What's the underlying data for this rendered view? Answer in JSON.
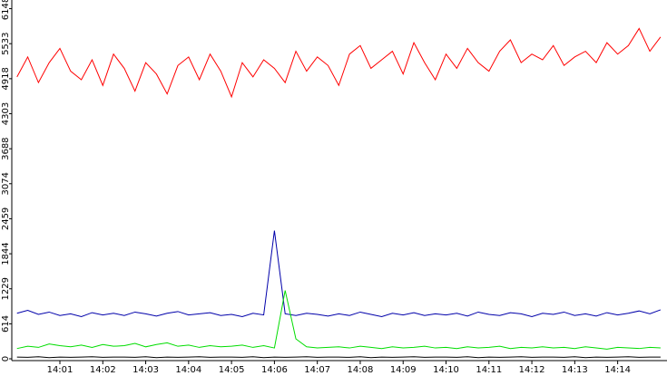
{
  "chart_data": {
    "type": "line",
    "x": [
      0,
      0.25,
      0.5,
      0.75,
      1,
      1.25,
      1.5,
      1.75,
      2,
      2.25,
      2.5,
      2.75,
      3,
      3.25,
      3.5,
      3.75,
      4,
      4.25,
      4.5,
      4.75,
      5,
      5.25,
      5.5,
      5.75,
      6,
      6.25,
      6.5,
      6.75,
      7,
      7.25,
      7.5,
      7.75,
      8,
      8.25,
      8.5,
      8.75,
      9,
      9.25,
      9.5,
      9.75,
      10,
      10.25,
      10.5,
      10.75,
      11,
      11.25,
      11.5,
      11.75,
      12,
      12.25,
      12.5,
      12.75,
      13,
      13.25,
      13.5,
      13.75,
      14,
      14.25,
      14.5,
      14.75,
      15
    ],
    "series": [
      {
        "color": "#ff0000",
        "values": [
          4950,
          5300,
          4850,
          5200,
          5450,
          5050,
          4900,
          5250,
          4800,
          5350,
          5100,
          4700,
          5200,
          5000,
          4650,
          5150,
          5300,
          4900,
          5350,
          5050,
          4600,
          5200,
          4950,
          5250,
          5100,
          4850,
          5400,
          5050,
          5300,
          5150,
          4800,
          5350,
          5500,
          5100,
          5250,
          5400,
          5000,
          5550,
          5200,
          4900,
          5350,
          5100,
          5450,
          5200,
          5050,
          5400,
          5600,
          5200,
          5350,
          5250,
          5500,
          5150,
          5300,
          5400,
          5200,
          5550,
          5350,
          5500,
          5800,
          5400,
          5650
        ]
      },
      {
        "color": "#0000aa",
        "values": [
          800,
          850,
          780,
          820,
          760,
          790,
          740,
          810,
          770,
          800,
          760,
          820,
          790,
          750,
          800,
          830,
          770,
          790,
          810,
          760,
          780,
          740,
          800,
          770,
          2250,
          790,
          760,
          800,
          780,
          750,
          790,
          760,
          820,
          780,
          740,
          800,
          770,
          810,
          760,
          790,
          770,
          800,
          750,
          820,
          780,
          760,
          810,
          790,
          740,
          800,
          780,
          820,
          760,
          790,
          750,
          810,
          770,
          800,
          840,
          790,
          860
        ]
      },
      {
        "color": "#00dd00",
        "values": [
          180,
          220,
          200,
          260,
          230,
          210,
          240,
          200,
          250,
          220,
          230,
          270,
          210,
          250,
          280,
          220,
          240,
          200,
          230,
          210,
          220,
          240,
          200,
          230,
          190,
          1200,
          350,
          210,
          190,
          200,
          210,
          190,
          220,
          200,
          180,
          210,
          190,
          200,
          220,
          190,
          200,
          180,
          210,
          190,
          200,
          220,
          180,
          200,
          190,
          210,
          190,
          200,
          180,
          210,
          190,
          170,
          200,
          190,
          180,
          200,
          190
        ]
      },
      {
        "color": "#000000",
        "values": [
          30,
          25,
          35,
          20,
          30,
          25,
          30,
          35,
          25,
          30,
          30,
          25,
          35,
          20,
          30,
          25,
          30,
          35,
          25,
          30,
          30,
          25,
          35,
          20,
          30,
          25,
          30,
          35,
          25,
          30,
          30,
          25,
          35,
          20,
          30,
          25,
          30,
          35,
          25,
          30,
          30,
          25,
          35,
          20,
          30,
          25,
          30,
          35,
          25,
          30,
          30,
          25,
          35,
          20,
          30,
          25,
          30,
          35,
          25,
          30,
          30
        ]
      }
    ],
    "xlim": [
      -0.1,
      15.15
    ],
    "xticks": [
      {
        "value": 1,
        "label": "14:01"
      },
      {
        "value": 2,
        "label": "14:02"
      },
      {
        "value": 3,
        "label": "14:03"
      },
      {
        "value": 4,
        "label": "14:04"
      },
      {
        "value": 5,
        "label": "14:05"
      },
      {
        "value": 6,
        "label": "14:06"
      },
      {
        "value": 7,
        "label": "14:07"
      },
      {
        "value": 8,
        "label": "14:08"
      },
      {
        "value": 9,
        "label": "14:09"
      },
      {
        "value": 10,
        "label": "14:10"
      },
      {
        "value": 11,
        "label": "14:11"
      },
      {
        "value": 12,
        "label": "14:12"
      },
      {
        "value": 13,
        "label": "14:13"
      },
      {
        "value": 14,
        "label": "14:14"
      }
    ],
    "ylim": [
      0,
      6300
    ],
    "yticks": [
      0,
      614,
      1229,
      1844,
      2459,
      3074,
      3688,
      4303,
      4918,
      5533,
      6148
    ]
  }
}
